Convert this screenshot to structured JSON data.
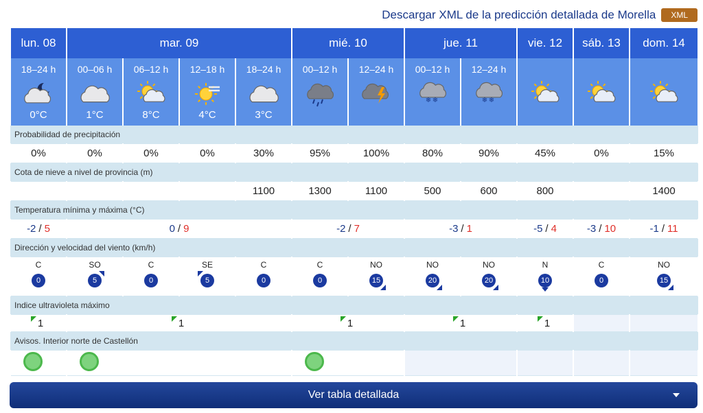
{
  "header": {
    "download_text": "Descargar XML de la predicción detallada de Morella",
    "xml_badge": "XML"
  },
  "days": [
    {
      "label": "lun. 08",
      "span": 1
    },
    {
      "label": "mar. 09",
      "span": 4
    },
    {
      "label": "mié. 10",
      "span": 2
    },
    {
      "label": "jue. 11",
      "span": 2
    },
    {
      "label": "vie. 12",
      "span": 1
    },
    {
      "label": "sáb. 13",
      "span": 1
    },
    {
      "label": "dom. 14",
      "span": 1
    }
  ],
  "periods": [
    {
      "label": "18–24 h",
      "icon": "cloud-moon-icon",
      "temp": "0°C"
    },
    {
      "label": "00–06 h",
      "icon": "cloud-icon",
      "temp": "1°C"
    },
    {
      "label": "06–12 h",
      "icon": "sun-cloud-icon",
      "temp": "8°C"
    },
    {
      "label": "12–18 h",
      "icon": "sun-fog-icon",
      "temp": "4°C"
    },
    {
      "label": "18–24 h",
      "icon": "cloud-icon",
      "temp": "3°C"
    },
    {
      "label": "00–12 h",
      "icon": "cloud-rain-icon",
      "temp": ""
    },
    {
      "label": "12–24 h",
      "icon": "cloud-storm-icon",
      "temp": ""
    },
    {
      "label": "00–12 h",
      "icon": "cloud-snow-icon",
      "temp": ""
    },
    {
      "label": "12–24 h",
      "icon": "cloud-snow-icon",
      "temp": ""
    },
    {
      "label": "",
      "icon": "sun-cloud-icon",
      "temp": ""
    },
    {
      "label": "",
      "icon": "sun-cloud-icon",
      "temp": ""
    },
    {
      "label": "",
      "icon": "sun-cloud-icon",
      "temp": ""
    }
  ],
  "sections": {
    "precip": "Probabilidad de precipitación",
    "snow": "Cota de nieve a nivel de provincia (m)",
    "temp": "Temperatura mínima y máxima (°C)",
    "wind": "Dirección y velocidad del viento (km/h)",
    "uv": "Indice ultravioleta máximo",
    "alerts": "Avisos. Interior norte de Castellón"
  },
  "precip": [
    "0%",
    "0%",
    "0%",
    "0%",
    "30%",
    "95%",
    "100%",
    "80%",
    "90%",
    "45%",
    "0%",
    "15%"
  ],
  "snow": [
    "",
    "",
    "",
    "",
    "1100",
    "1300",
    "1100",
    "500",
    "600",
    "800",
    "",
    "1400"
  ],
  "temps": [
    {
      "span": 1,
      "min": "-2",
      "max": "5"
    },
    {
      "span": 4,
      "min": "0",
      "max": "9"
    },
    {
      "span": 2,
      "min": "-2",
      "max": "7"
    },
    {
      "span": 2,
      "min": "-3",
      "max": "1"
    },
    {
      "span": 1,
      "min": "-5",
      "max": "4"
    },
    {
      "span": 1,
      "min": "-3",
      "max": "10"
    },
    {
      "span": 1,
      "min": "-1",
      "max": "11"
    }
  ],
  "temp_sep": "/",
  "wind": [
    {
      "dir": "C",
      "speed": "0",
      "arrow": ""
    },
    {
      "dir": "SO",
      "speed": "5",
      "arrow": "ne"
    },
    {
      "dir": "C",
      "speed": "0",
      "arrow": ""
    },
    {
      "dir": "SE",
      "speed": "5",
      "arrow": "nw"
    },
    {
      "dir": "C",
      "speed": "0",
      "arrow": ""
    },
    {
      "dir": "C",
      "speed": "0",
      "arrow": ""
    },
    {
      "dir": "NO",
      "speed": "15",
      "arrow": "se"
    },
    {
      "dir": "NO",
      "speed": "20",
      "arrow": "se"
    },
    {
      "dir": "NO",
      "speed": "20",
      "arrow": "se"
    },
    {
      "dir": "N",
      "speed": "10",
      "arrow": "s"
    },
    {
      "dir": "C",
      "speed": "0",
      "arrow": ""
    },
    {
      "dir": "NO",
      "speed": "15",
      "arrow": "se"
    }
  ],
  "uv": [
    {
      "span": 1,
      "value": "1"
    },
    {
      "span": 4,
      "value": "1"
    },
    {
      "span": 2,
      "value": "1"
    },
    {
      "span": 2,
      "value": "1"
    },
    {
      "span": 1,
      "value": "1"
    },
    {
      "span": 1,
      "value": ""
    },
    {
      "span": 1,
      "value": ""
    }
  ],
  "alerts": [
    {
      "span": 1,
      "level": "green"
    },
    {
      "span": 4,
      "level": "green"
    },
    {
      "span": 2,
      "level": "green"
    },
    {
      "span": 2,
      "level": ""
    },
    {
      "span": 1,
      "level": ""
    },
    {
      "span": 1,
      "level": ""
    },
    {
      "span": 1,
      "level": ""
    }
  ],
  "colors": {
    "day_header": "#2d5fd3",
    "period_header": "#5b90e6",
    "section_label": "#d3e6f0",
    "alert_green": "#7ed37e",
    "wind_circle": "#1b3aa0",
    "min_temp": "#1b3a8a",
    "max_temp": "#e0302a"
  },
  "footer": {
    "button_label": "Ver tabla detallada"
  }
}
